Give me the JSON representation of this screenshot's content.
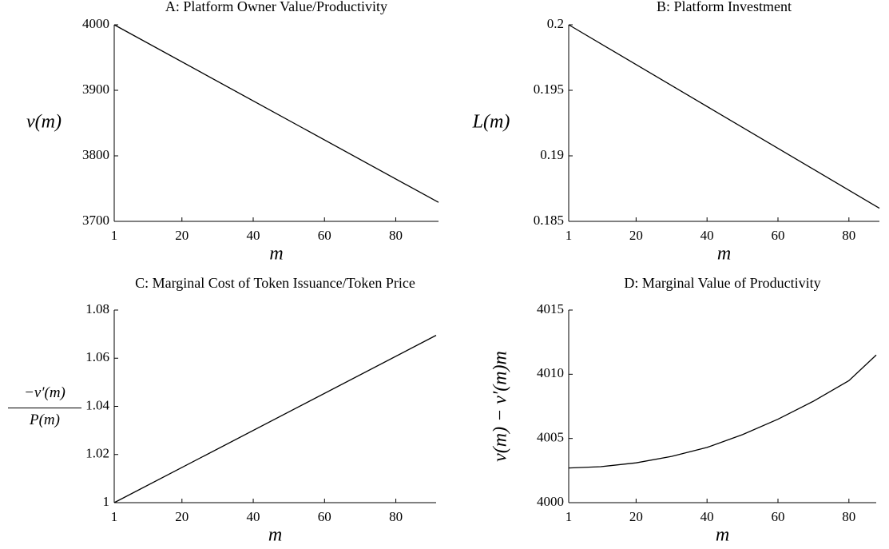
{
  "chart_data": [
    {
      "type": "line",
      "title": "A: Platform Owner Value/Productivity",
      "xlabel": "m",
      "ylabel": "v(m)",
      "x": [
        1,
        92
      ],
      "values": [
        4000,
        3729
      ],
      "color": "#000000",
      "xlim": [
        1,
        92
      ],
      "xticks": [
        1,
        20,
        40,
        60,
        80
      ],
      "ylim": [
        3700,
        4000
      ],
      "yticks": [
        3700,
        3800,
        3900,
        4000
      ],
      "grid": false
    },
    {
      "type": "line",
      "title": "B: Platform Investment",
      "xlabel": "m",
      "ylabel": "L(m)",
      "x": [
        1,
        88.6
      ],
      "values": [
        0.2,
        0.186
      ],
      "color": "#000000",
      "xlim": [
        1,
        88.6
      ],
      "xticks": [
        1,
        20,
        40,
        60,
        80
      ],
      "ylim": [
        0.185,
        0.2
      ],
      "yticks": [
        0.185,
        0.19,
        0.195,
        0.2
      ],
      "grid": false
    },
    {
      "type": "line",
      "title": "C: Marginal Cost of Token Issuance/Token Price",
      "xlabel": "m",
      "ylabel_numerator": "−v′(m)",
      "ylabel_denominator": "P(m)",
      "x": [
        1,
        91.3
      ],
      "values": [
        1,
        1.0695
      ],
      "color": "#000000",
      "xlim": [
        1,
        91.3
      ],
      "xticks": [
        1,
        20,
        40,
        60,
        80
      ],
      "ylim": [
        1,
        1.08
      ],
      "yticks": [
        1,
        1.02,
        1.04,
        1.06,
        1.08
      ],
      "grid": false
    },
    {
      "type": "line",
      "title": "D: Marginal Value of Productivity",
      "xlabel": "m",
      "ylabel": "v(m) − v′(m)m",
      "x": [
        1,
        10,
        20,
        30,
        40,
        50,
        60,
        70,
        80,
        87.7
      ],
      "values": [
        4002.7,
        4002.8,
        4003.1,
        4003.6,
        4004.3,
        4005.3,
        4006.5,
        4007.9,
        4009.5,
        4011.5
      ],
      "color": "#000000",
      "xlim": [
        1,
        87.7
      ],
      "xticks": [
        1,
        20,
        40,
        60,
        80
      ],
      "ylim": [
        4000,
        4015
      ],
      "yticks": [
        4000,
        4005,
        4010,
        4015
      ],
      "grid": false
    }
  ]
}
